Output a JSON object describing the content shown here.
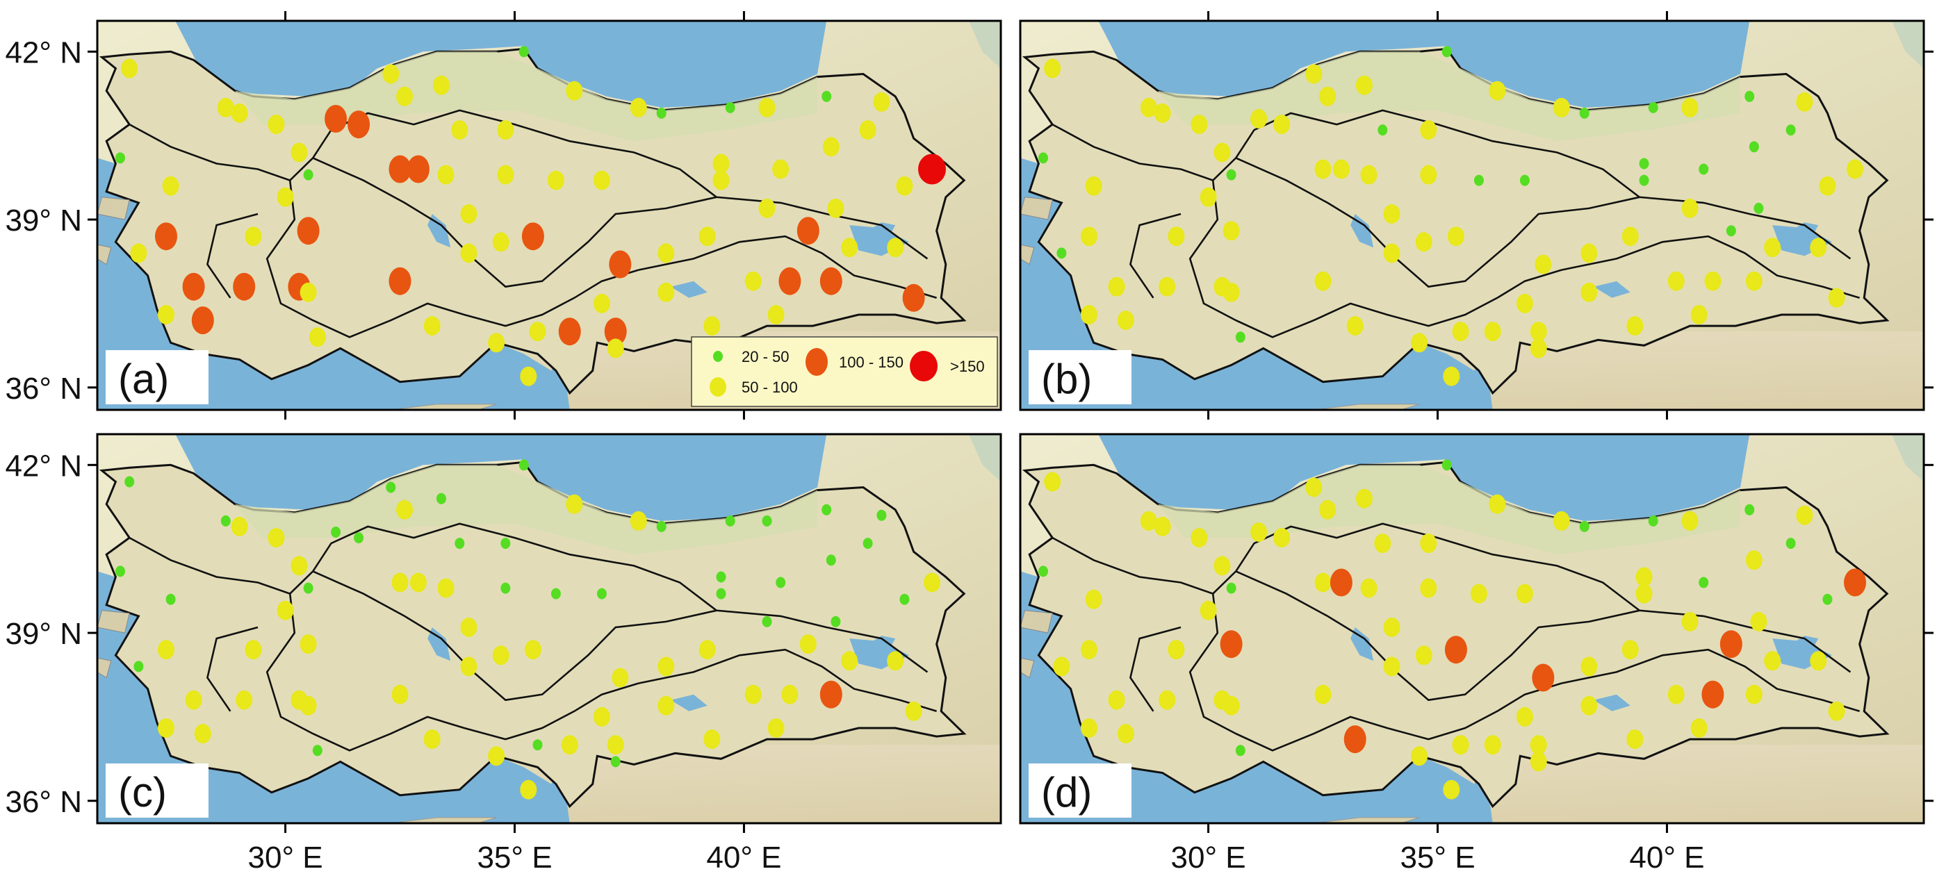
{
  "axes": {
    "lat_labels": [
      "42° N",
      "39° N",
      "36° N"
    ],
    "lon_labels": [
      "30° E",
      "35° E",
      "40° E"
    ]
  },
  "legend": {
    "items": [
      {
        "label": "20 - 50",
        "color": "#55dd22"
      },
      {
        "label": "50 - 100",
        "color": "#e8e81a"
      },
      {
        "label": "100 - 150",
        "color": "#e85510"
      },
      {
        "label": ">150",
        "color": "#e80808"
      }
    ]
  },
  "colors": {
    "sea": "#7ab3d8",
    "land": "#e8e4c6",
    "border": "#111111"
  },
  "panels": [
    {
      "tag": "(a)"
    },
    {
      "tag": "(b)"
    },
    {
      "tag": "(c)"
    },
    {
      "tag": "(d)"
    }
  ],
  "stations": {
    "base": [
      {
        "lon": 26.6,
        "lat": 41.7
      },
      {
        "lon": 26.4,
        "lat": 40.1
      },
      {
        "lon": 28.7,
        "lat": 41.0
      },
      {
        "lon": 29.0,
        "lat": 40.9
      },
      {
        "lon": 29.8,
        "lat": 40.7
      },
      {
        "lon": 30.3,
        "lat": 40.2
      },
      {
        "lon": 30.5,
        "lat": 39.8
      },
      {
        "lon": 31.1,
        "lat": 40.8
      },
      {
        "lon": 31.6,
        "lat": 40.7
      },
      {
        "lon": 32.3,
        "lat": 41.6
      },
      {
        "lon": 32.6,
        "lat": 41.2
      },
      {
        "lon": 33.4,
        "lat": 41.4
      },
      {
        "lon": 33.8,
        "lat": 40.6
      },
      {
        "lon": 35.2,
        "lat": 42.0
      },
      {
        "lon": 34.8,
        "lat": 40.6
      },
      {
        "lon": 36.3,
        "lat": 41.3
      },
      {
        "lon": 37.7,
        "lat": 41.0
      },
      {
        "lon": 38.2,
        "lat": 40.9
      },
      {
        "lon": 39.7,
        "lat": 41.0
      },
      {
        "lon": 40.5,
        "lat": 41.0
      },
      {
        "lon": 41.8,
        "lat": 41.2
      },
      {
        "lon": 43.0,
        "lat": 41.1
      },
      {
        "lon": 42.7,
        "lat": 40.6
      },
      {
        "lon": 44.1,
        "lat": 39.9
      },
      {
        "lon": 27.5,
        "lat": 39.6
      },
      {
        "lon": 27.4,
        "lat": 38.7
      },
      {
        "lon": 26.8,
        "lat": 38.4
      },
      {
        "lon": 28.0,
        "lat": 37.8
      },
      {
        "lon": 27.4,
        "lat": 37.3
      },
      {
        "lon": 28.2,
        "lat": 37.2
      },
      {
        "lon": 29.1,
        "lat": 37.8
      },
      {
        "lon": 29.3,
        "lat": 38.7
      },
      {
        "lon": 30.0,
        "lat": 39.4
      },
      {
        "lon": 30.5,
        "lat": 38.8
      },
      {
        "lon": 30.3,
        "lat": 37.8
      },
      {
        "lon": 30.5,
        "lat": 37.7
      },
      {
        "lon": 30.7,
        "lat": 36.9
      },
      {
        "lon": 32.5,
        "lat": 37.9
      },
      {
        "lon": 33.2,
        "lat": 37.1
      },
      {
        "lon": 32.5,
        "lat": 39.9
      },
      {
        "lon": 32.9,
        "lat": 39.9
      },
      {
        "lon": 33.5,
        "lat": 39.8
      },
      {
        "lon": 34.0,
        "lat": 39.1
      },
      {
        "lon": 34.7,
        "lat": 38.6
      },
      {
        "lon": 34.0,
        "lat": 38.4
      },
      {
        "lon": 35.4,
        "lat": 38.7
      },
      {
        "lon": 35.9,
        "lat": 39.7
      },
      {
        "lon": 34.8,
        "lat": 39.8
      },
      {
        "lon": 36.9,
        "lat": 39.7
      },
      {
        "lon": 35.5,
        "lat": 37.0
      },
      {
        "lon": 36.2,
        "lat": 37.0
      },
      {
        "lon": 34.6,
        "lat": 36.8
      },
      {
        "lon": 35.3,
        "lat": 36.2
      },
      {
        "lon": 36.9,
        "lat": 37.5
      },
      {
        "lon": 37.3,
        "lat": 38.2
      },
      {
        "lon": 37.2,
        "lat": 37.0
      },
      {
        "lon": 37.2,
        "lat": 36.7
      },
      {
        "lon": 38.3,
        "lat": 37.7
      },
      {
        "lon": 38.3,
        "lat": 38.4
      },
      {
        "lon": 39.2,
        "lat": 38.7
      },
      {
        "lon": 39.5,
        "lat": 39.7
      },
      {
        "lon": 39.5,
        "lat": 40.0
      },
      {
        "lon": 40.8,
        "lat": 39.9
      },
      {
        "lon": 40.5,
        "lat": 39.2
      },
      {
        "lon": 41.4,
        "lat": 38.8
      },
      {
        "lon": 41.0,
        "lat": 37.9
      },
      {
        "lon": 41.9,
        "lat": 37.9
      },
      {
        "lon": 42.3,
        "lat": 38.5
      },
      {
        "lon": 43.3,
        "lat": 38.5
      },
      {
        "lon": 43.7,
        "lat": 37.6
      },
      {
        "lon": 39.3,
        "lat": 37.1
      },
      {
        "lon": 40.2,
        "lat": 37.9
      },
      {
        "lon": 40.7,
        "lat": 37.3
      },
      {
        "lon": 41.9,
        "lat": 40.3
      },
      {
        "lon": 43.5,
        "lat": 39.6
      },
      {
        "lon": 42.0,
        "lat": 39.2
      }
    ],
    "classes": [
      [
        1,
        0,
        1,
        1,
        1,
        1,
        0,
        2,
        2,
        1,
        1,
        1,
        1,
        0,
        1,
        1,
        1,
        0,
        0,
        1,
        0,
        1,
        1,
        3,
        1,
        2,
        1,
        2,
        1,
        2,
        2,
        1,
        1,
        2,
        2,
        1,
        1,
        2,
        1,
        2,
        2,
        1,
        1,
        1,
        1,
        2,
        1,
        1,
        1,
        1,
        2,
        1,
        1,
        1,
        2,
        2,
        1,
        1,
        1,
        1,
        1,
        1,
        1,
        1,
        2,
        2,
        2,
        1,
        1,
        2,
        1,
        1,
        1,
        1,
        1,
        1
      ],
      [
        1,
        0,
        1,
        1,
        1,
        1,
        0,
        1,
        1,
        1,
        1,
        1,
        0,
        0,
        1,
        1,
        1,
        0,
        0,
        1,
        0,
        1,
        0,
        1,
        1,
        1,
        0,
        1,
        1,
        1,
        1,
        1,
        1,
        1,
        1,
        1,
        0,
        1,
        1,
        1,
        1,
        1,
        1,
        1,
        1,
        1,
        0,
        1,
        0,
        1,
        1,
        1,
        1,
        1,
        1,
        1,
        1,
        1,
        1,
        1,
        0,
        0,
        0,
        1,
        0,
        1,
        1,
        1,
        1,
        1,
        1,
        1,
        1,
        0,
        1,
        0
      ],
      [
        0,
        0,
        0,
        1,
        1,
        1,
        0,
        0,
        0,
        0,
        1,
        0,
        0,
        0,
        0,
        1,
        1,
        0,
        0,
        0,
        0,
        0,
        0,
        1,
        0,
        1,
        0,
        1,
        1,
        1,
        1,
        1,
        1,
        1,
        1,
        1,
        0,
        1,
        1,
        1,
        1,
        1,
        1,
        1,
        1,
        1,
        0,
        0,
        0,
        0,
        1,
        1,
        1,
        1,
        1,
        1,
        0,
        1,
        1,
        1,
        0,
        0,
        0,
        0,
        1,
        1,
        2,
        1,
        1,
        1,
        1,
        1,
        1,
        0,
        0,
        0
      ],
      [
        1,
        0,
        1,
        1,
        1,
        1,
        0,
        1,
        1,
        1,
        1,
        1,
        1,
        0,
        1,
        1,
        1,
        0,
        0,
        1,
        0,
        1,
        0,
        2,
        1,
        1,
        1,
        1,
        1,
        1,
        1,
        1,
        1,
        2,
        1,
        1,
        0,
        1,
        2,
        1,
        2,
        1,
        1,
        1,
        1,
        2,
        1,
        1,
        1,
        1,
        1,
        1,
        1,
        1,
        2,
        1,
        1,
        1,
        1,
        1,
        1,
        1,
        0,
        1,
        2,
        2,
        1,
        1,
        1,
        1,
        1,
        1,
        1,
        1,
        0,
        1
      ]
    ]
  }
}
